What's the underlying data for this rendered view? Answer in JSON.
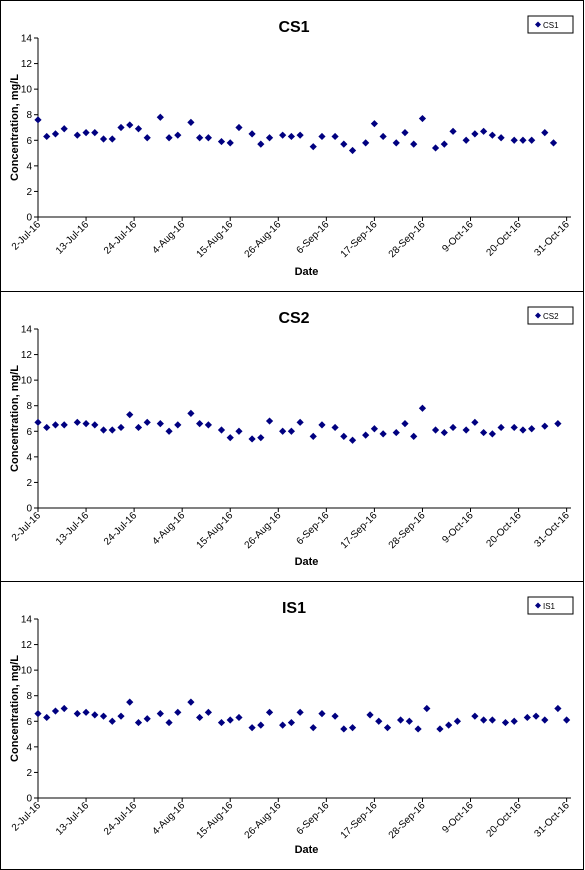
{
  "chart_data": [
    {
      "type": "scatter",
      "title": "CS1",
      "xlabel": "Date",
      "ylabel": "Concentration, mg/L",
      "ylim": [
        0,
        14
      ],
      "yticks": [
        0,
        2,
        4,
        6,
        8,
        10,
        12,
        14
      ],
      "xlim": [
        "2016-07-02",
        "2016-11-01"
      ],
      "xtick_labels": [
        "2-Jul-16",
        "13-Jul-16",
        "24-Jul-16",
        "4-Aug-16",
        "15-Aug-16",
        "26-Aug-16",
        "6-Sep-16",
        "17-Sep-16",
        "28-Sep-16",
        "9-Oct-16",
        "20-Oct-16",
        "31-Oct-16"
      ],
      "xticks": [
        "2016-07-02",
        "2016-07-13",
        "2016-07-24",
        "2016-08-04",
        "2016-08-15",
        "2016-08-26",
        "2016-09-06",
        "2016-09-17",
        "2016-09-28",
        "2016-10-09",
        "2016-10-20",
        "2016-10-31"
      ],
      "grid": false,
      "legend_position": "top-right",
      "marker_color": "#000080",
      "series": [
        {
          "name": "CS1",
          "points": [
            [
              "2016-07-02",
              7.6
            ],
            [
              "2016-07-04",
              6.3
            ],
            [
              "2016-07-06",
              6.5
            ],
            [
              "2016-07-08",
              6.9
            ],
            [
              "2016-07-11",
              6.4
            ],
            [
              "2016-07-13",
              6.6
            ],
            [
              "2016-07-15",
              6.6
            ],
            [
              "2016-07-17",
              6.1
            ],
            [
              "2016-07-19",
              6.1
            ],
            [
              "2016-07-21",
              7.0
            ],
            [
              "2016-07-23",
              7.2
            ],
            [
              "2016-07-25",
              6.9
            ],
            [
              "2016-07-27",
              6.2
            ],
            [
              "2016-07-30",
              7.8
            ],
            [
              "2016-08-01",
              6.2
            ],
            [
              "2016-08-03",
              6.4
            ],
            [
              "2016-08-06",
              7.4
            ],
            [
              "2016-08-08",
              6.2
            ],
            [
              "2016-08-10",
              6.2
            ],
            [
              "2016-08-13",
              5.9
            ],
            [
              "2016-08-15",
              5.8
            ],
            [
              "2016-08-17",
              7.0
            ],
            [
              "2016-08-20",
              6.5
            ],
            [
              "2016-08-22",
              5.7
            ],
            [
              "2016-08-24",
              6.2
            ],
            [
              "2016-08-27",
              6.4
            ],
            [
              "2016-08-29",
              6.3
            ],
            [
              "2016-08-31",
              6.4
            ],
            [
              "2016-09-03",
              5.5
            ],
            [
              "2016-09-05",
              6.3
            ],
            [
              "2016-09-08",
              6.3
            ],
            [
              "2016-09-10",
              5.7
            ],
            [
              "2016-09-12",
              5.2
            ],
            [
              "2016-09-15",
              5.8
            ],
            [
              "2016-09-17",
              7.3
            ],
            [
              "2016-09-19",
              6.3
            ],
            [
              "2016-09-22",
              5.8
            ],
            [
              "2016-09-24",
              6.6
            ],
            [
              "2016-09-26",
              5.7
            ],
            [
              "2016-09-28",
              7.7
            ],
            [
              "2016-10-01",
              5.4
            ],
            [
              "2016-10-03",
              5.7
            ],
            [
              "2016-10-05",
              6.7
            ],
            [
              "2016-10-08",
              6.0
            ],
            [
              "2016-10-10",
              6.5
            ],
            [
              "2016-10-12",
              6.7
            ],
            [
              "2016-10-14",
              6.4
            ],
            [
              "2016-10-16",
              6.2
            ],
            [
              "2016-10-19",
              6.0
            ],
            [
              "2016-10-21",
              6.0
            ],
            [
              "2016-10-23",
              6.0
            ],
            [
              "2016-10-26",
              6.6
            ],
            [
              "2016-10-28",
              5.8
            ]
          ]
        }
      ]
    },
    {
      "type": "scatter",
      "title": "CS2",
      "xlabel": "Date",
      "ylabel": "Concentration, mg/L",
      "ylim": [
        0,
        14
      ],
      "yticks": [
        0,
        2,
        4,
        6,
        8,
        10,
        12,
        14
      ],
      "xlim": [
        "2016-07-02",
        "2016-11-01"
      ],
      "xtick_labels": [
        "2-Jul-16",
        "13-Jul-16",
        "24-Jul-16",
        "4-Aug-16",
        "15-Aug-16",
        "26-Aug-16",
        "6-Sep-16",
        "17-Sep-16",
        "28-Sep-16",
        "9-Oct-16",
        "20-Oct-16",
        "31-Oct-16"
      ],
      "xticks": [
        "2016-07-02",
        "2016-07-13",
        "2016-07-24",
        "2016-08-04",
        "2016-08-15",
        "2016-08-26",
        "2016-09-06",
        "2016-09-17",
        "2016-09-28",
        "2016-10-09",
        "2016-10-20",
        "2016-10-31"
      ],
      "grid": false,
      "legend_position": "top-right",
      "marker_color": "#000080",
      "series": [
        {
          "name": "CS2",
          "points": [
            [
              "2016-07-02",
              6.7
            ],
            [
              "2016-07-04",
              6.3
            ],
            [
              "2016-07-06",
              6.5
            ],
            [
              "2016-07-08",
              6.5
            ],
            [
              "2016-07-11",
              6.7
            ],
            [
              "2016-07-13",
              6.6
            ],
            [
              "2016-07-15",
              6.5
            ],
            [
              "2016-07-17",
              6.1
            ],
            [
              "2016-07-19",
              6.1
            ],
            [
              "2016-07-21",
              6.3
            ],
            [
              "2016-07-23",
              7.3
            ],
            [
              "2016-07-25",
              6.3
            ],
            [
              "2016-07-27",
              6.7
            ],
            [
              "2016-07-30",
              6.6
            ],
            [
              "2016-08-01",
              6.0
            ],
            [
              "2016-08-03",
              6.5
            ],
            [
              "2016-08-06",
              7.4
            ],
            [
              "2016-08-08",
              6.6
            ],
            [
              "2016-08-10",
              6.5
            ],
            [
              "2016-08-13",
              6.1
            ],
            [
              "2016-08-15",
              5.5
            ],
            [
              "2016-08-17",
              6.0
            ],
            [
              "2016-08-20",
              5.4
            ],
            [
              "2016-08-22",
              5.5
            ],
            [
              "2016-08-24",
              6.8
            ],
            [
              "2016-08-27",
              6.0
            ],
            [
              "2016-08-29",
              6.0
            ],
            [
              "2016-08-31",
              6.7
            ],
            [
              "2016-09-03",
              5.6
            ],
            [
              "2016-09-05",
              6.5
            ],
            [
              "2016-09-08",
              6.3
            ],
            [
              "2016-09-10",
              5.6
            ],
            [
              "2016-09-12",
              5.3
            ],
            [
              "2016-09-15",
              5.7
            ],
            [
              "2016-09-17",
              6.2
            ],
            [
              "2016-09-19",
              5.8
            ],
            [
              "2016-09-22",
              5.9
            ],
            [
              "2016-09-24",
              6.6
            ],
            [
              "2016-09-26",
              5.6
            ],
            [
              "2016-09-28",
              7.8
            ],
            [
              "2016-10-01",
              6.1
            ],
            [
              "2016-10-03",
              5.9
            ],
            [
              "2016-10-05",
              6.3
            ],
            [
              "2016-10-08",
              6.1
            ],
            [
              "2016-10-10",
              6.7
            ],
            [
              "2016-10-12",
              5.9
            ],
            [
              "2016-10-14",
              5.8
            ],
            [
              "2016-10-16",
              6.3
            ],
            [
              "2016-10-19",
              6.3
            ],
            [
              "2016-10-21",
              6.1
            ],
            [
              "2016-10-23",
              6.2
            ],
            [
              "2016-10-26",
              6.4
            ],
            [
              "2016-10-29",
              6.6
            ]
          ]
        }
      ]
    },
    {
      "type": "scatter",
      "title": "IS1",
      "xlabel": "Date",
      "ylabel": "Concentration, mg/L",
      "ylim": [
        0,
        14
      ],
      "yticks": [
        0,
        2,
        4,
        6,
        8,
        10,
        12,
        14
      ],
      "xlim": [
        "2016-07-02",
        "2016-11-01"
      ],
      "xtick_labels": [
        "2-Jul-16",
        "13-Jul-16",
        "24-Jul-16",
        "4-Aug-16",
        "15-Aug-16",
        "26-Aug-16",
        "6-Sep-16",
        "17-Sep-16",
        "28-Sep-16",
        "9-Oct-16",
        "20-Oct-16",
        "31-Oct-16"
      ],
      "xticks": [
        "2016-07-02",
        "2016-07-13",
        "2016-07-24",
        "2016-08-04",
        "2016-08-15",
        "2016-08-26",
        "2016-09-06",
        "2016-09-17",
        "2016-09-28",
        "2016-10-09",
        "2016-10-20",
        "2016-10-31"
      ],
      "grid": false,
      "legend_position": "top-right",
      "marker_color": "#000080",
      "series": [
        {
          "name": "IS1",
          "points": [
            [
              "2016-07-02",
              6.6
            ],
            [
              "2016-07-04",
              6.3
            ],
            [
              "2016-07-06",
              6.8
            ],
            [
              "2016-07-08",
              7.0
            ],
            [
              "2016-07-11",
              6.6
            ],
            [
              "2016-07-13",
              6.7
            ],
            [
              "2016-07-15",
              6.5
            ],
            [
              "2016-07-17",
              6.4
            ],
            [
              "2016-07-19",
              6.0
            ],
            [
              "2016-07-21",
              6.4
            ],
            [
              "2016-07-23",
              7.5
            ],
            [
              "2016-07-25",
              5.9
            ],
            [
              "2016-07-27",
              6.2
            ],
            [
              "2016-07-30",
              6.6
            ],
            [
              "2016-08-01",
              5.9
            ],
            [
              "2016-08-03",
              6.7
            ],
            [
              "2016-08-06",
              7.5
            ],
            [
              "2016-08-08",
              6.3
            ],
            [
              "2016-08-10",
              6.7
            ],
            [
              "2016-08-13",
              5.9
            ],
            [
              "2016-08-15",
              6.1
            ],
            [
              "2016-08-17",
              6.3
            ],
            [
              "2016-08-20",
              5.5
            ],
            [
              "2016-08-22",
              5.7
            ],
            [
              "2016-08-24",
              6.7
            ],
            [
              "2016-08-27",
              5.7
            ],
            [
              "2016-08-29",
              5.9
            ],
            [
              "2016-08-31",
              6.7
            ],
            [
              "2016-09-03",
              5.5
            ],
            [
              "2016-09-05",
              6.6
            ],
            [
              "2016-09-08",
              6.4
            ],
            [
              "2016-09-10",
              5.4
            ],
            [
              "2016-09-12",
              5.5
            ],
            [
              "2016-09-16",
              6.5
            ],
            [
              "2016-09-18",
              6.0
            ],
            [
              "2016-09-20",
              5.5
            ],
            [
              "2016-09-23",
              6.1
            ],
            [
              "2016-09-25",
              6.0
            ],
            [
              "2016-09-27",
              5.4
            ],
            [
              "2016-09-29",
              7.0
            ],
            [
              "2016-10-02",
              5.4
            ],
            [
              "2016-10-04",
              5.7
            ],
            [
              "2016-10-06",
              6.0
            ],
            [
              "2016-10-10",
              6.4
            ],
            [
              "2016-10-12",
              6.1
            ],
            [
              "2016-10-14",
              6.1
            ],
            [
              "2016-10-17",
              5.9
            ],
            [
              "2016-10-19",
              6.0
            ],
            [
              "2016-10-22",
              6.3
            ],
            [
              "2016-10-24",
              6.4
            ],
            [
              "2016-10-26",
              6.1
            ],
            [
              "2016-10-29",
              7.0
            ],
            [
              "2016-10-31",
              6.1
            ]
          ]
        }
      ]
    }
  ]
}
